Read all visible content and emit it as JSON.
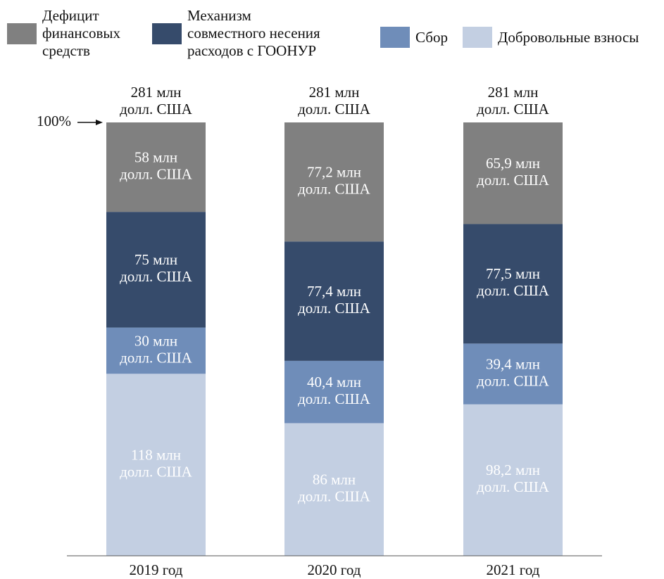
{
  "chart_data": {
    "type": "stacked_bar",
    "categories": [
      "2019 год",
      "2020 год",
      "2021 год"
    ],
    "ylim": [
      0,
      281
    ],
    "annotation": "100%",
    "totals": [
      281,
      281,
      281
    ],
    "total_labels": [
      [
        "281 млн",
        "долл. США"
      ],
      [
        "281 млн",
        "долл. США"
      ],
      [
        "281 млн",
        "долл. США"
      ]
    ],
    "series": [
      {
        "name": "Дефицит финансовых средств",
        "color": "#808080",
        "values": [
          58,
          77.2,
          65.9
        ],
        "value_labels": [
          [
            "58 млн",
            "долл. США"
          ],
          [
            "77,2 млн",
            "долл. США"
          ],
          [
            "65,9 млн",
            "долл. США"
          ]
        ]
      },
      {
        "name": "Механизм совместного несения расходов с ГООНУР",
        "color": "#364b6b",
        "values": [
          75,
          77.4,
          77.5
        ],
        "value_labels": [
          [
            "75 млн",
            "долл. США"
          ],
          [
            "77,4 млн",
            "долл. США"
          ],
          [
            "77,5 млн",
            "долл. США"
          ]
        ]
      },
      {
        "name": "Сбор",
        "color": "#6f8db9",
        "values": [
          30,
          40.4,
          39.4
        ],
        "value_labels": [
          [
            "30 млн",
            "долл. США"
          ],
          [
            "40,4 млн",
            "долл. США"
          ],
          [
            "39,4 млн",
            "долл. США"
          ]
        ]
      },
      {
        "name": "Добровольные взносы",
        "color": "#c3cfe2",
        "values": [
          118,
          86,
          98.2
        ],
        "value_labels": [
          [
            "118 млн",
            "долл. США"
          ],
          [
            "86 млн",
            "долл. США"
          ],
          [
            "98,2 млн",
            "долл. США"
          ]
        ]
      }
    ]
  }
}
